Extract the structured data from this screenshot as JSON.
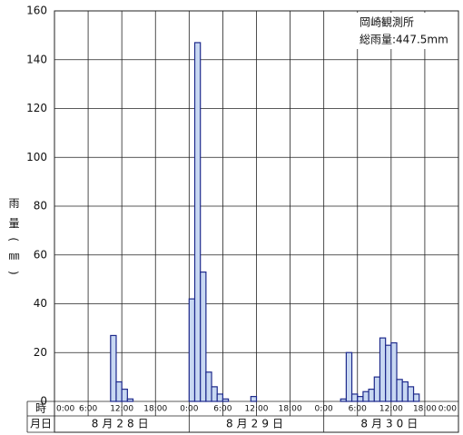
{
  "chart_data": {
    "type": "histogram",
    "ylabel": "雨量(㎜)",
    "annotation": [
      "岡崎観測所",
      "総雨量:447.5mm"
    ],
    "row_labels": [
      "時",
      "月日"
    ],
    "days": [
      "8月28日",
      "8月29日",
      "8月30日"
    ],
    "bins": [
      0,
      1,
      2,
      3,
      4,
      5,
      6,
      7,
      8,
      9,
      10,
      11,
      12,
      13,
      14,
      15,
      16,
      17,
      18,
      19,
      20,
      21,
      22,
      23,
      24,
      25,
      26,
      27,
      28,
      29,
      30,
      31,
      32,
      33,
      34,
      35,
      36,
      37,
      38,
      39,
      40,
      41,
      42,
      43,
      44,
      45,
      46,
      47,
      48,
      49,
      50,
      51,
      52,
      53,
      54,
      55,
      56,
      57,
      58,
      59,
      60,
      61,
      62,
      63,
      64,
      65,
      66,
      67,
      68,
      69,
      70,
      71,
      72
    ],
    "counts": [
      0,
      0,
      0,
      0,
      0,
      0,
      0,
      0,
      0,
      0,
      27,
      8,
      5,
      1,
      0,
      0,
      0,
      0,
      0,
      0,
      0,
      0,
      0,
      0,
      42,
      147,
      53,
      12,
      6,
      3,
      1,
      0,
      0,
      0,
      0,
      2,
      0,
      0,
      0,
      0,
      0,
      0,
      0,
      0,
      0,
      0,
      0,
      0,
      0,
      0,
      0,
      1,
      20,
      3,
      2,
      4,
      5,
      10,
      26,
      23,
      24,
      9,
      8,
      6,
      3,
      0,
      0,
      0,
      0,
      0,
      0,
      0
    ],
    "color": "#c8d8f2",
    "edge": "#1e2a8c",
    "xlim": [
      0,
      72
    ],
    "xticks": [
      {
        "value": 0,
        "label": "0:00"
      },
      {
        "value": 6,
        "label": "6:00"
      },
      {
        "value": 12,
        "label": "12:00"
      },
      {
        "value": 18,
        "label": "18:00"
      },
      {
        "value": 24,
        "label": "0:00"
      },
      {
        "value": 30,
        "label": "6:00"
      },
      {
        "value": 36,
        "label": "12:00"
      },
      {
        "value": 42,
        "label": "18:00"
      },
      {
        "value": 48,
        "label": "0:00"
      },
      {
        "value": 54,
        "label": "6:00"
      },
      {
        "value": 60,
        "label": "12:00"
      },
      {
        "value": 66,
        "label": "18:00"
      },
      {
        "value": 72,
        "label": "0:00"
      }
    ],
    "ylim": [
      0,
      160
    ],
    "yticks": [
      0,
      20,
      40,
      60,
      80,
      100,
      120,
      140,
      160
    ],
    "grid": true
  }
}
